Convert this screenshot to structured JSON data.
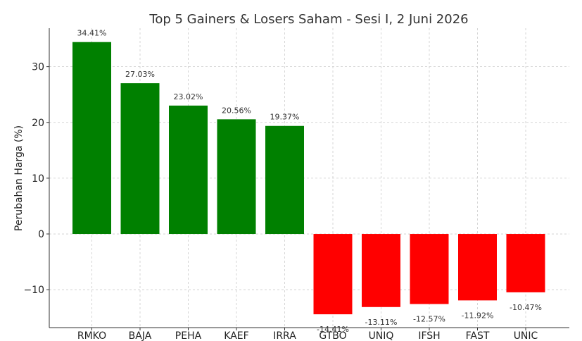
{
  "chart_data": {
    "type": "bar",
    "title": "Top 5 Gainers & Losers Saham - Sesi I, 2 Juni 2026",
    "xlabel": "",
    "ylabel": "Perubahan Harga (%)",
    "categories": [
      "RMKO",
      "BAJA",
      "PEHA",
      "KAEF",
      "IRRA",
      "GTBO",
      "UNIQ",
      "IFSH",
      "FAST",
      "UNIC"
    ],
    "values": [
      34.41,
      27.03,
      23.02,
      20.56,
      19.37,
      -14.41,
      -13.11,
      -12.57,
      -11.92,
      -10.47
    ],
    "data_labels": [
      "34.41%",
      "27.03%",
      "23.02%",
      "20.56%",
      "19.37%",
      "-14.41%",
      "-13.11%",
      "-12.57%",
      "-11.92%",
      "-10.47%"
    ],
    "bar_colors": [
      "#008000",
      "#008000",
      "#008000",
      "#008000",
      "#008000",
      "#ff0000",
      "#ff0000",
      "#ff0000",
      "#ff0000",
      "#ff0000"
    ],
    "ylim": [
      -16.8,
      36.9
    ],
    "yticks": [
      -10,
      0,
      10,
      20,
      30
    ],
    "ytick_labels": [
      "−10",
      "0",
      "10",
      "20",
      "30"
    ],
    "grid": true
  }
}
